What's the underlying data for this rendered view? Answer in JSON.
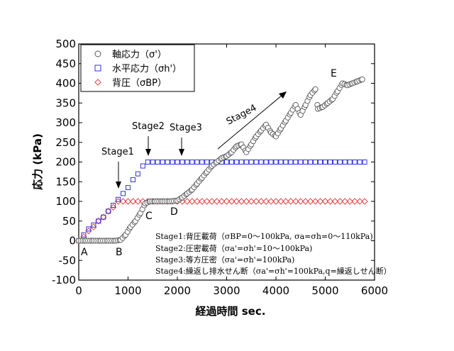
{
  "chart_data": {
    "type": "scatter",
    "xlabel": "経過時間 sec.",
    "ylabel": "応力 (kPa)",
    "xlim": [
      0,
      6000
    ],
    "ylim": [
      -100,
      500
    ],
    "xticks": [
      "0",
      "1000",
      "2000",
      "3000",
      "4000",
      "5000",
      "6000"
    ],
    "yticks": [
      "-100",
      "-50",
      "0",
      "50",
      "100",
      "150",
      "200",
      "250",
      "300",
      "350",
      "400",
      "450",
      "500"
    ],
    "legend_position": "top-left",
    "series": [
      {
        "name": "軸応力（σ'）",
        "marker": "circle",
        "color": "#555555",
        "x": [
          0,
          150,
          300,
          450,
          600,
          750,
          850,
          950,
          1050,
          1150,
          1250,
          1350,
          1450,
          1550,
          1700,
          1850,
          2000,
          2100,
          2200,
          2300,
          2400,
          2500,
          2600,
          2700,
          2800,
          2900,
          3000,
          3100,
          3200,
          3300,
          3400,
          3500,
          3600,
          3700,
          3800,
          3900,
          4000,
          4100,
          4200,
          4300,
          4400,
          4500,
          4600,
          4700,
          4800,
          4850,
          4950,
          5050,
          5150,
          5250,
          5350,
          5450,
          5550,
          5650,
          5750
        ],
        "y": [
          0,
          0,
          0,
          0,
          0,
          0,
          2,
          15,
          35,
          50,
          70,
          95,
          100,
          100,
          100,
          100,
          102,
          110,
          120,
          130,
          145,
          160,
          175,
          190,
          200,
          210,
          215,
          225,
          240,
          245,
          225,
          245,
          265,
          280,
          295,
          275,
          265,
          285,
          305,
          325,
          345,
          320,
          345,
          370,
          385,
          335,
          340,
          350,
          360,
          380,
          400,
          395,
          400,
          405,
          410
        ]
      },
      {
        "name": "水平応力（σh'）",
        "marker": "square",
        "color": "#3333dd",
        "x": [
          0,
          100,
          200,
          300,
          400,
          500,
          600,
          700,
          800,
          900,
          1000,
          1100,
          1200,
          1300,
          1400,
          1500,
          1600,
          1700,
          1800,
          1900,
          2000,
          2200,
          2400,
          2600,
          2800,
          3000,
          3200,
          3400,
          3600,
          3800,
          4000,
          4200,
          4400,
          4600,
          4800,
          5000,
          5200,
          5400,
          5600,
          5800
        ],
        "y": [
          0,
          15,
          30,
          40,
          50,
          60,
          75,
          90,
          105,
          120,
          135,
          155,
          170,
          190,
          200,
          200,
          200,
          200,
          200,
          200,
          200,
          200,
          200,
          200,
          200,
          200,
          200,
          200,
          200,
          200,
          200,
          200,
          200,
          200,
          200,
          200,
          200,
          200,
          200,
          200
        ]
      },
      {
        "name": "背圧（σBP）",
        "marker": "diamond",
        "color": "#ee4444",
        "x": [
          0,
          100,
          200,
          300,
          400,
          500,
          600,
          700,
          800,
          900,
          1000,
          1200,
          1400,
          1600,
          1800,
          2000,
          2200,
          2400,
          2600,
          2800,
          3000,
          3200,
          3400,
          3600,
          3800,
          4000,
          4200,
          4400,
          4600,
          4800,
          5000,
          5200,
          5400,
          5800
        ],
        "y": [
          0,
          10,
          25,
          35,
          50,
          60,
          75,
          85,
          100,
          100,
          100,
          100,
          100,
          100,
          100,
          100,
          100,
          100,
          100,
          100,
          100,
          100,
          100,
          100,
          100,
          100,
          100,
          100,
          100,
          100,
          100,
          100,
          100,
          100
        ]
      }
    ],
    "annotations": {
      "stage1": "Stage1",
      "stage2": "Stage2",
      "stage3": "Stage3",
      "stage4": "Stage4",
      "A": "A",
      "B": "B",
      "C": "C",
      "D": "D",
      "E": "E"
    },
    "notes": [
      "Stage1:背圧載荷（σBP=0～100kPa, σa=σh=0～110kPa)",
      "Stage2:圧密載荷（σa'=σh'=10～100kPa)",
      "Stage3:等方圧密（σa'=σh'=100kPa)",
      "Stage4:繰返し排水せん断（σa'=σh'=100kPa,q=繰返しせん断）"
    ]
  }
}
